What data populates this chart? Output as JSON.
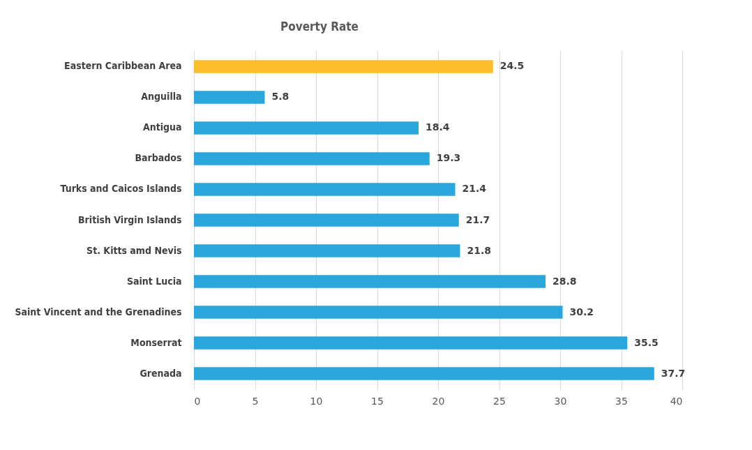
{
  "chart_data": {
    "type": "bar",
    "orientation": "horizontal",
    "title": "Poverty Rate",
    "categories": [
      "Eastern Caribbean Area",
      "Anguilla",
      "Antigua",
      "Barbados",
      "Turks and Caicos Islands",
      "British Virgin Islands",
      "St. Kitts amd Nevis",
      "Saint Lucia",
      "Saint Vincent and the Grenadines",
      "Monserrat",
      "Grenada"
    ],
    "values": [
      24.5,
      5.8,
      18.4,
      19.3,
      21.4,
      21.7,
      21.8,
      28.8,
      30.2,
      35.5,
      37.7
    ],
    "colors": [
      "#fbbd2a",
      "#2aa6dc",
      "#2aa6dc",
      "#2aa6dc",
      "#2aa6dc",
      "#2aa6dc",
      "#2aa6dc",
      "#2aa6dc",
      "#2aa6dc",
      "#2aa6dc",
      "#2aa6dc"
    ],
    "xlim": [
      0,
      40
    ],
    "xticks": [
      0,
      5,
      10,
      15,
      20,
      25,
      30,
      35,
      40
    ],
    "grid": "x",
    "data_labels": true
  }
}
